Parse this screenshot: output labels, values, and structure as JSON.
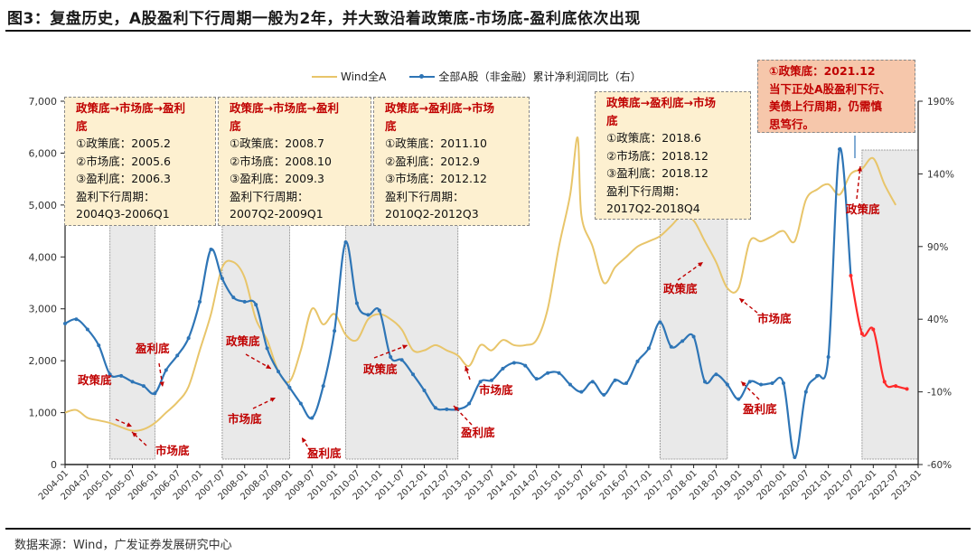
{
  "header": {
    "title": "图3：复盘历史，A股盈利下行周期一般为2年，并大致沿着政策底-市场底-盈利底依次出现"
  },
  "footer": {
    "source": "数据来源：Wind，广发证券发展研究中心"
  },
  "legend": {
    "wind": "Wind全A",
    "profit": "全部A股（非金融）累计净利润同比（右）"
  },
  "notes": [
    {
      "head": "政策底→市场底→盈利",
      "head2": "底",
      "l1": "①政策底：2005.2",
      "l2": "②市场底：2005.6",
      "l3": "③盈利底：2006.3",
      "l4": "盈利下行周期：",
      "l5": "2004Q3-2006Q1"
    },
    {
      "head": "政策底→市场底→盈利",
      "head2": "底",
      "l1": "①政策底：2008.7",
      "l2": "②市场底：2008.10",
      "l3": "③盈利底：2009.3",
      "l4": "盈利下行周期：",
      "l5": "2007Q2-2009Q1"
    },
    {
      "head": "政策底→盈利底→市场",
      "head2": "底",
      "l1": "①政策底：2011.10",
      "l2": "②盈利底：2012.9",
      "l3": "③市场底：2012.12",
      "l4": "盈利下行周期：",
      "l5": "2010Q2-2012Q3"
    },
    {
      "head": "政策底→盈利底→市场",
      "head2": "底",
      "l1": "①政策底：2018.6",
      "l2": "②市场底：2018.12",
      "l3": "③盈利底：2018.12",
      "l4": "盈利下行周期：",
      "l5": "2017Q2-2018Q4"
    },
    {
      "l1": "①政策底：2021.12",
      "l2": "当下正处A股盈利下行、",
      "l3": "美债上行周期，仍需慎",
      "l4": "思笃行。"
    }
  ],
  "annotations": {
    "policy_bottom": "政策底",
    "market_bottom": "市场底",
    "profit_bottom": "盈利底"
  },
  "colors": {
    "wind": "#e8c56a",
    "profit": "#2e75b6",
    "profit_recent": "#ff2a2a",
    "annotation": "#c00000",
    "shade": "#e9e9e9",
    "note_bg": "#fdf0d0",
    "note_pink": "#f6c7ab"
  },
  "chart_data": {
    "type": "line",
    "title": "复盘历史，A股盈利下行周期一般为2年，并大致沿着政策底-市场底-盈利底依次出现",
    "xlabel": "",
    "ylabel_left": "Wind全A",
    "ylabel_right": "全部A股（非金融）累计净利润同比",
    "x_ticks": [
      "2004-01",
      "2004-07",
      "2005-01",
      "2005-07",
      "2006-01",
      "2006-07",
      "2007-01",
      "2007-07",
      "2008-01",
      "2008-07",
      "2009-01",
      "2009-07",
      "2010-01",
      "2010-07",
      "2011-01",
      "2011-07",
      "2012-01",
      "2012-07",
      "2013-01",
      "2013-07",
      "2014-01",
      "2014-07",
      "2015-01",
      "2015-07",
      "2016-01",
      "2016-07",
      "2017-01",
      "2017-07",
      "2018-01",
      "2018-07",
      "2019-01",
      "2019-07",
      "2020-01",
      "2020-07",
      "2021-01",
      "2021-07",
      "2022-01",
      "2022-07",
      "2023-01"
    ],
    "ylim_left": [
      0,
      7000
    ],
    "yticks_left": [
      "0",
      "1,000",
      "2,000",
      "3,000",
      "4,000",
      "5,000",
      "6,000",
      "7,000"
    ],
    "ylim_right": [
      -60,
      190
    ],
    "yticks_right": [
      "-60%",
      "-10%",
      "40%",
      "90%",
      "140%",
      "190%"
    ],
    "grid": false,
    "legend_position": "top",
    "series": [
      {
        "name": "Wind全A",
        "axis": "left",
        "x": [
          "2004-01",
          "2004-04",
          "2004-07",
          "2004-10",
          "2005-01",
          "2005-04",
          "2005-07",
          "2005-10",
          "2006-01",
          "2006-04",
          "2006-07",
          "2006-10",
          "2007-01",
          "2007-04",
          "2007-07",
          "2007-10",
          "2008-01",
          "2008-04",
          "2008-07",
          "2008-10",
          "2009-01",
          "2009-04",
          "2009-07",
          "2009-10",
          "2010-01",
          "2010-04",
          "2010-07",
          "2010-10",
          "2011-01",
          "2011-04",
          "2011-07",
          "2011-10",
          "2012-01",
          "2012-04",
          "2012-07",
          "2012-10",
          "2013-01",
          "2013-04",
          "2013-07",
          "2013-10",
          "2014-01",
          "2014-04",
          "2014-07",
          "2014-10",
          "2015-01",
          "2015-04",
          "2015-06",
          "2015-07",
          "2015-10",
          "2016-01",
          "2016-04",
          "2016-07",
          "2016-10",
          "2017-01",
          "2017-04",
          "2017-07",
          "2017-10",
          "2018-01",
          "2018-04",
          "2018-07",
          "2018-10",
          "2019-01",
          "2019-04",
          "2019-07",
          "2019-10",
          "2020-01",
          "2020-04",
          "2020-07",
          "2020-10",
          "2021-01",
          "2021-04",
          "2021-07",
          "2021-10",
          "2022-01",
          "2022-04",
          "2022-07"
        ],
        "values": [
          1000,
          1050,
          900,
          850,
          800,
          720,
          650,
          680,
          800,
          1000,
          1200,
          1500,
          2200,
          2900,
          3800,
          3900,
          3600,
          2800,
          2400,
          1800,
          1600,
          2200,
          3000,
          2700,
          2900,
          2500,
          2400,
          2800,
          2900,
          2800,
          2600,
          2200,
          2200,
          2300,
          2200,
          2100,
          1900,
          2300,
          2200,
          2400,
          2300,
          2300,
          2400,
          3000,
          4200,
          5200,
          6300,
          4800,
          4200,
          3500,
          3800,
          4000,
          4200,
          4300,
          4400,
          4600,
          4800,
          4700,
          4300,
          3900,
          3400,
          3400,
          4300,
          4300,
          4400,
          4500,
          4300,
          5100,
          5300,
          5400,
          5200,
          5600,
          5700,
          5900,
          5400,
          5000
        ]
      },
      {
        "name": "全部A股（非金融）累计净利润同比（右）",
        "axis": "right",
        "x": [
          "2004Q1",
          "2004Q2",
          "2004Q3",
          "2004Q4",
          "2005Q1",
          "2005Q2",
          "2005Q3",
          "2005Q4",
          "2006Q1",
          "2006Q2",
          "2006Q3",
          "2006Q4",
          "2007Q1",
          "2007Q2",
          "2007Q3",
          "2007Q4",
          "2008Q1",
          "2008Q2",
          "2008Q3",
          "2008Q4",
          "2009Q1",
          "2009Q2",
          "2009Q3",
          "2009Q4",
          "2010Q1",
          "2010Q2",
          "2010Q3",
          "2010Q4",
          "2011Q1",
          "2011Q2",
          "2011Q3",
          "2011Q4",
          "2012Q1",
          "2012Q2",
          "2012Q3",
          "2012Q4",
          "2013Q1",
          "2013Q2",
          "2013Q3",
          "2013Q4",
          "2014Q1",
          "2014Q2",
          "2014Q3",
          "2014Q4",
          "2015Q1",
          "2015Q2",
          "2015Q3",
          "2015Q4",
          "2016Q1",
          "2016Q2",
          "2016Q3",
          "2016Q4",
          "2017Q1",
          "2017Q2",
          "2017Q3",
          "2017Q4",
          "2018Q1",
          "2018Q2",
          "2018Q3",
          "2018Q4",
          "2019Q1",
          "2019Q2",
          "2019Q3",
          "2019Q4",
          "2020Q1",
          "2020Q2",
          "2020Q3",
          "2020Q4",
          "2021Q1",
          "2021Q2",
          "2021Q3",
          "2021Q4",
          "2022Q1",
          "2022Q2",
          "2022Q3",
          "2022Q4"
        ],
        "values": [
          37,
          40,
          33,
          22,
          2,
          1,
          -3,
          -6,
          -11,
          5,
          15,
          27,
          52,
          88,
          68,
          55,
          52,
          50,
          20,
          4,
          -7,
          -18,
          -28,
          -6,
          32,
          93,
          51,
          43,
          46,
          14,
          12,
          2,
          -9,
          -21,
          -22,
          -22,
          -18,
          -3,
          -2,
          6,
          10,
          8,
          -1,
          3,
          3,
          -5,
          -10,
          -3,
          -12,
          -2,
          -4,
          11,
          20,
          38,
          21,
          25,
          28,
          -3,
          2,
          -5,
          -15,
          -3,
          -5,
          -4,
          -4,
          -55,
          -10,
          1,
          14,
          157,
          70,
          30,
          33,
          -3,
          -6,
          -8
        ]
      }
    ],
    "shaded_periods": [
      {
        "from": "2005-01",
        "to": "2006-01"
      },
      {
        "from": "2007-07",
        "to": "2009-01"
      },
      {
        "from": "2010-04",
        "to": "2012-10"
      },
      {
        "from": "2017-04",
        "to": "2018-10"
      },
      {
        "from": "2021-10",
        "to": "2023-01"
      }
    ],
    "annotations": [
      "政策底",
      "市场底",
      "盈利底"
    ]
  }
}
